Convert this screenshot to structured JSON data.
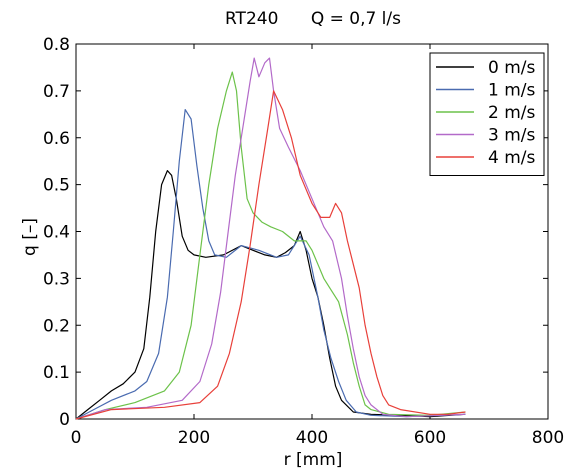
{
  "chart_data": {
    "type": "line",
    "title": "RT240      Q = 0,7 l/s",
    "xlabel": "r [mm]",
    "ylabel": "q [–]",
    "xlim": [
      0,
      800
    ],
    "ylim": [
      0,
      0.8
    ],
    "x_ticks": [
      "0",
      "200",
      "400",
      "600",
      "800"
    ],
    "y_ticks": [
      "0",
      "0.1",
      "0.2",
      "0.3",
      "0.4",
      "0.5",
      "0.6",
      "0.7",
      "0.8"
    ],
    "grid": false,
    "legend_position": "top-right",
    "series": [
      {
        "name": "0 m/s",
        "color": "#000000",
        "points": [
          [
            0,
            0
          ],
          [
            20,
            0.02
          ],
          [
            40,
            0.04
          ],
          [
            60,
            0.06
          ],
          [
            80,
            0.075
          ],
          [
            100,
            0.1
          ],
          [
            115,
            0.15
          ],
          [
            125,
            0.26
          ],
          [
            135,
            0.4
          ],
          [
            145,
            0.5
          ],
          [
            155,
            0.53
          ],
          [
            162,
            0.52
          ],
          [
            170,
            0.47
          ],
          [
            180,
            0.39
          ],
          [
            190,
            0.36
          ],
          [
            200,
            0.35
          ],
          [
            220,
            0.345
          ],
          [
            250,
            0.35
          ],
          [
            280,
            0.37
          ],
          [
            300,
            0.36
          ],
          [
            320,
            0.35
          ],
          [
            340,
            0.345
          ],
          [
            355,
            0.355
          ],
          [
            370,
            0.37
          ],
          [
            380,
            0.4
          ],
          [
            390,
            0.36
          ],
          [
            400,
            0.3
          ],
          [
            410,
            0.26
          ],
          [
            420,
            0.2
          ],
          [
            430,
            0.13
          ],
          [
            440,
            0.07
          ],
          [
            450,
            0.04
          ],
          [
            470,
            0.015
          ],
          [
            500,
            0.01
          ],
          [
            550,
            0.008
          ],
          [
            600,
            0.005
          ],
          [
            660,
            0.01
          ]
        ]
      },
      {
        "name": "1 m/s",
        "color": "#4a6bb0",
        "points": [
          [
            0,
            0
          ],
          [
            30,
            0.02
          ],
          [
            60,
            0.04
          ],
          [
            100,
            0.06
          ],
          [
            120,
            0.08
          ],
          [
            140,
            0.14
          ],
          [
            155,
            0.26
          ],
          [
            165,
            0.4
          ],
          [
            175,
            0.55
          ],
          [
            185,
            0.66
          ],
          [
            195,
            0.64
          ],
          [
            205,
            0.54
          ],
          [
            215,
            0.45
          ],
          [
            225,
            0.38
          ],
          [
            235,
            0.35
          ],
          [
            255,
            0.345
          ],
          [
            280,
            0.37
          ],
          [
            310,
            0.36
          ],
          [
            340,
            0.345
          ],
          [
            360,
            0.35
          ],
          [
            380,
            0.39
          ],
          [
            395,
            0.35
          ],
          [
            410,
            0.26
          ],
          [
            420,
            0.19
          ],
          [
            432,
            0.13
          ],
          [
            445,
            0.08
          ],
          [
            458,
            0.04
          ],
          [
            475,
            0.015
          ],
          [
            500,
            0.008
          ],
          [
            560,
            0.005
          ],
          [
            660,
            0.01
          ]
        ]
      },
      {
        "name": "2 m/s",
        "color": "#6cc24a",
        "points": [
          [
            0,
            0
          ],
          [
            50,
            0.02
          ],
          [
            100,
            0.035
          ],
          [
            150,
            0.06
          ],
          [
            175,
            0.1
          ],
          [
            195,
            0.2
          ],
          [
            210,
            0.35
          ],
          [
            225,
            0.5
          ],
          [
            240,
            0.62
          ],
          [
            255,
            0.7
          ],
          [
            265,
            0.74
          ],
          [
            272,
            0.7
          ],
          [
            280,
            0.58
          ],
          [
            290,
            0.47
          ],
          [
            300,
            0.44
          ],
          [
            315,
            0.42
          ],
          [
            330,
            0.41
          ],
          [
            350,
            0.4
          ],
          [
            370,
            0.38
          ],
          [
            390,
            0.38
          ],
          [
            400,
            0.36
          ],
          [
            410,
            0.33
          ],
          [
            420,
            0.3
          ],
          [
            430,
            0.28
          ],
          [
            445,
            0.25
          ],
          [
            460,
            0.18
          ],
          [
            470,
            0.12
          ],
          [
            480,
            0.07
          ],
          [
            490,
            0.03
          ],
          [
            500,
            0.02
          ],
          [
            530,
            0.01
          ],
          [
            600,
            0.008
          ],
          [
            660,
            0.015
          ]
        ]
      },
      {
        "name": "3 m/s",
        "color": "#b36ac9",
        "points": [
          [
            0,
            0
          ],
          [
            50,
            0.02
          ],
          [
            120,
            0.025
          ],
          [
            180,
            0.04
          ],
          [
            210,
            0.08
          ],
          [
            230,
            0.16
          ],
          [
            245,
            0.27
          ],
          [
            258,
            0.4
          ],
          [
            270,
            0.52
          ],
          [
            285,
            0.64
          ],
          [
            295,
            0.72
          ],
          [
            302,
            0.77
          ],
          [
            310,
            0.73
          ],
          [
            320,
            0.76
          ],
          [
            328,
            0.77
          ],
          [
            335,
            0.7
          ],
          [
            345,
            0.62
          ],
          [
            360,
            0.58
          ],
          [
            380,
            0.53
          ],
          [
            400,
            0.47
          ],
          [
            420,
            0.41
          ],
          [
            435,
            0.38
          ],
          [
            450,
            0.3
          ],
          [
            460,
            0.22
          ],
          [
            470,
            0.15
          ],
          [
            480,
            0.09
          ],
          [
            490,
            0.05
          ],
          [
            500,
            0.03
          ],
          [
            520,
            0.01
          ],
          [
            560,
            0.005
          ],
          [
            660,
            0.01
          ]
        ]
      },
      {
        "name": "4 m/s",
        "color": "#e8403a",
        "points": [
          [
            0,
            0
          ],
          [
            60,
            0.02
          ],
          [
            150,
            0.025
          ],
          [
            210,
            0.035
          ],
          [
            240,
            0.07
          ],
          [
            260,
            0.14
          ],
          [
            280,
            0.25
          ],
          [
            295,
            0.37
          ],
          [
            310,
            0.5
          ],
          [
            325,
            0.62
          ],
          [
            335,
            0.7
          ],
          [
            350,
            0.66
          ],
          [
            365,
            0.6
          ],
          [
            380,
            0.52
          ],
          [
            400,
            0.46
          ],
          [
            415,
            0.43
          ],
          [
            430,
            0.43
          ],
          [
            440,
            0.46
          ],
          [
            450,
            0.44
          ],
          [
            460,
            0.38
          ],
          [
            470,
            0.33
          ],
          [
            480,
            0.28
          ],
          [
            490,
            0.2
          ],
          [
            500,
            0.14
          ],
          [
            510,
            0.09
          ],
          [
            520,
            0.05
          ],
          [
            530,
            0.03
          ],
          [
            550,
            0.02
          ],
          [
            600,
            0.01
          ],
          [
            630,
            0.01
          ],
          [
            660,
            0.015
          ]
        ]
      }
    ]
  }
}
